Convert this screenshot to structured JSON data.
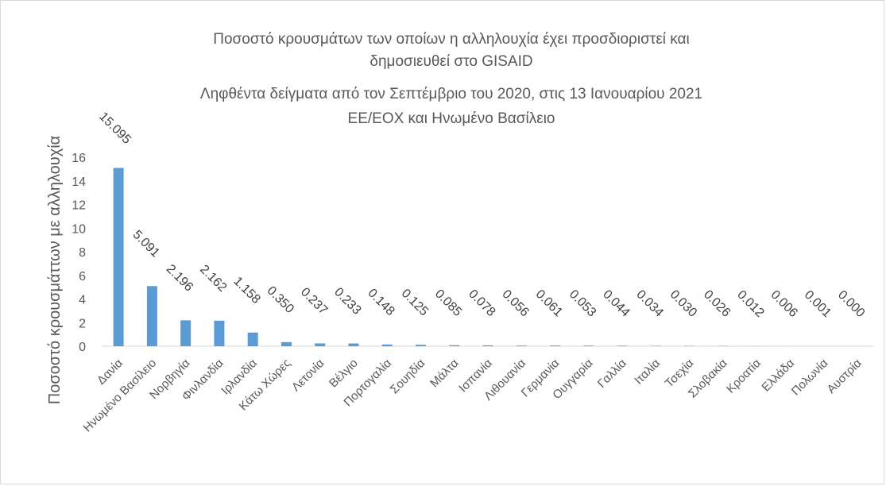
{
  "chart_data": {
    "type": "bar",
    "title_lines": [
      "Ποσοστό κρουσμάτων των οποίων η αλληλουχία έχει προσδιοριστεί και",
      "δημοσιευθεί στο GISAID",
      "Ληφθέντα δείγματα από τον Σεπτέμβριο του 2020, στις 13 Ιανουαρίου 2021",
      "ΕΕ/ΕΟΧ και Ηνωμένο Βασίλειο"
    ],
    "xlabel": "",
    "ylabel": "Ποσοστό κρουσμάττων με αλληλουχία",
    "ylim": [
      0,
      16
    ],
    "yticks": [
      0,
      2,
      4,
      6,
      8,
      10,
      12,
      14,
      16
    ],
    "grid": false,
    "bar_color": "#5b9bd5",
    "categories": [
      "Δανία",
      "Ηνωμένο Βασίλειο",
      "Νορβηγία",
      "Φινλανδία",
      "Ιρλανδία",
      "Κάτω Χώρες",
      "Λετονία",
      "Βέλγιο",
      "Πορτογαλία",
      "Σουηδία",
      "Μάλτα",
      "Ισπανία",
      "Λιθουανία",
      "Γερμανία",
      "Ουγγαρία",
      "Γαλλία",
      "Ιταλία",
      "Τσεχία",
      "Σλοβακία",
      "Κροατία",
      "Ελλάδα",
      "Πολωνία",
      "Αυστρία"
    ],
    "values": [
      15.095,
      5.091,
      2.196,
      2.162,
      1.158,
      0.35,
      0.237,
      0.233,
      0.148,
      0.125,
      0.085,
      0.078,
      0.056,
      0.061,
      0.053,
      0.044,
      0.034,
      0.03,
      0.026,
      0.012,
      0.006,
      0.001,
      0.0
    ],
    "value_labels": [
      "15.095",
      "5.091",
      "2.196",
      "2.162",
      "1.158",
      "0.350",
      "0.237",
      "0.233",
      "0.148",
      "0.125",
      "0.085",
      "0.078",
      "0.056",
      "0.061",
      "0.053",
      "0.044",
      "0.034",
      "0.030",
      "0.026",
      "0.012",
      "0.006",
      "0.001",
      "0.000"
    ]
  }
}
